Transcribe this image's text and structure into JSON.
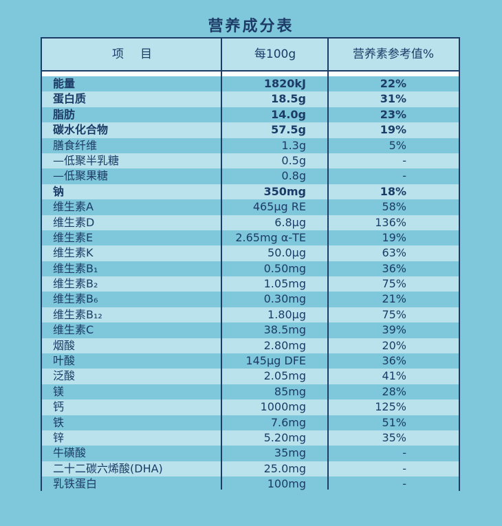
{
  "title": "营养成分表",
  "header": {
    "item": "项目",
    "per100g": "每100g",
    "nrv": "营养素参考值%"
  },
  "rows": [
    {
      "name": "能量",
      "value": "1820kJ",
      "nrv": "22%",
      "bold": true
    },
    {
      "name": "蛋白质",
      "value": "18.5g",
      "nrv": "31%",
      "bold": true
    },
    {
      "name": "脂肪",
      "value": "14.0g",
      "nrv": "23%",
      "bold": true
    },
    {
      "name": "碳水化合物",
      "value": "57.5g",
      "nrv": "19%",
      "bold": true
    },
    {
      "name": "膳食纤维",
      "value": "1.3g",
      "nrv": "5%",
      "bold": false
    },
    {
      "name": "—低聚半乳糖",
      "value": "0.5g",
      "nrv": "-",
      "bold": false
    },
    {
      "name": "—低聚果糖",
      "value": "0.8g",
      "nrv": "-",
      "bold": false
    },
    {
      "name": "钠",
      "value": "350mg",
      "nrv": "18%",
      "bold": true
    },
    {
      "name": "维生素A",
      "value": "465μg RE",
      "nrv": "58%",
      "bold": false
    },
    {
      "name": "维生素D",
      "value": "6.8μg",
      "nrv": "136%",
      "bold": false
    },
    {
      "name": "维生素E",
      "value": "2.65mg α-TE",
      "nrv": "19%",
      "bold": false
    },
    {
      "name": "维生素K",
      "value": "50.0μg",
      "nrv": "63%",
      "bold": false
    },
    {
      "name": "维生素B₁",
      "value": "0.50mg",
      "nrv": "36%",
      "bold": false
    },
    {
      "name": "维生素B₂",
      "value": "1.05mg",
      "nrv": "75%",
      "bold": false
    },
    {
      "name": "维生素B₆",
      "value": "0.30mg",
      "nrv": "21%",
      "bold": false
    },
    {
      "name": "维生素B₁₂",
      "value": "1.80μg",
      "nrv": "75%",
      "bold": false
    },
    {
      "name": "维生素C",
      "value": "38.5mg",
      "nrv": "39%",
      "bold": false
    },
    {
      "name": "烟酸",
      "value": "2.80mg",
      "nrv": "20%",
      "bold": false
    },
    {
      "name": "叶酸",
      "value": "145μg DFE",
      "nrv": "36%",
      "bold": false
    },
    {
      "name": "泛酸",
      "value": "2.05mg",
      "nrv": "41%",
      "bold": false
    },
    {
      "name": "镁",
      "value": "85mg",
      "nrv": "28%",
      "bold": false
    },
    {
      "name": "钙",
      "value": "1000mg",
      "nrv": "125%",
      "bold": false
    },
    {
      "name": "铁",
      "value": "7.6mg",
      "nrv": "51%",
      "bold": false
    },
    {
      "name": "锌",
      "value": "5.20mg",
      "nrv": "35%",
      "bold": false
    },
    {
      "name": "牛磺酸",
      "value": "35mg",
      "nrv": "-",
      "bold": false
    },
    {
      "name": "二十二碳六烯酸(DHA)",
      "value": "25.0mg",
      "nrv": "-",
      "bold": false
    },
    {
      "name": "乳铁蛋白",
      "value": "100mg",
      "nrv": "-",
      "bold": false
    }
  ]
}
